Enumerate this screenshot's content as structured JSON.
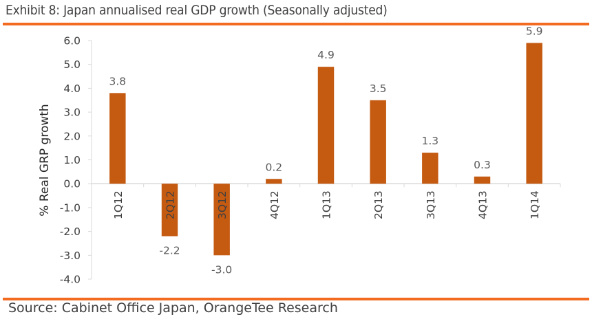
{
  "header": {
    "title": "Exhibit 8:  Japan annualised real GDP growth (Seasonally adjusted)"
  },
  "footer": {
    "source": "Source: Cabinet Office Japan, OrangeTee Research"
  },
  "colors": {
    "bar": "#c55a11",
    "rule": "#f26b21",
    "axis": "#d9d9d9"
  },
  "chart_data": {
    "type": "bar",
    "title": "Japan annualised real GDP growth (Seasonally adjusted)",
    "xlabel": "",
    "ylabel": "% Real GRP growth",
    "categories": [
      "1Q12",
      "2Q12",
      "3Q12",
      "4Q12",
      "1Q13",
      "2Q13",
      "3Q13",
      "4Q13",
      "1Q14"
    ],
    "values": [
      3.8,
      -2.2,
      -3.0,
      0.2,
      4.9,
      3.5,
      1.3,
      0.3,
      5.9
    ],
    "data_labels": [
      "3.8",
      "-2.2",
      "-3.0",
      "0.2",
      "4.9",
      "3.5",
      "1.3",
      "0.3",
      "5.9"
    ],
    "ylim": [
      -4.0,
      6.0
    ],
    "yticks": [
      6.0,
      5.0,
      4.0,
      3.0,
      2.0,
      1.0,
      0.0,
      -1.0,
      -2.0,
      -3.0,
      -4.0
    ],
    "ytick_labels": [
      "6.0",
      "5.0",
      "4.0",
      "3.0",
      "2.0",
      "1.0",
      "0.0",
      "-1.0",
      "-2.0",
      "-3.0",
      "-4.0"
    ],
    "grid": false,
    "legend": "none"
  }
}
